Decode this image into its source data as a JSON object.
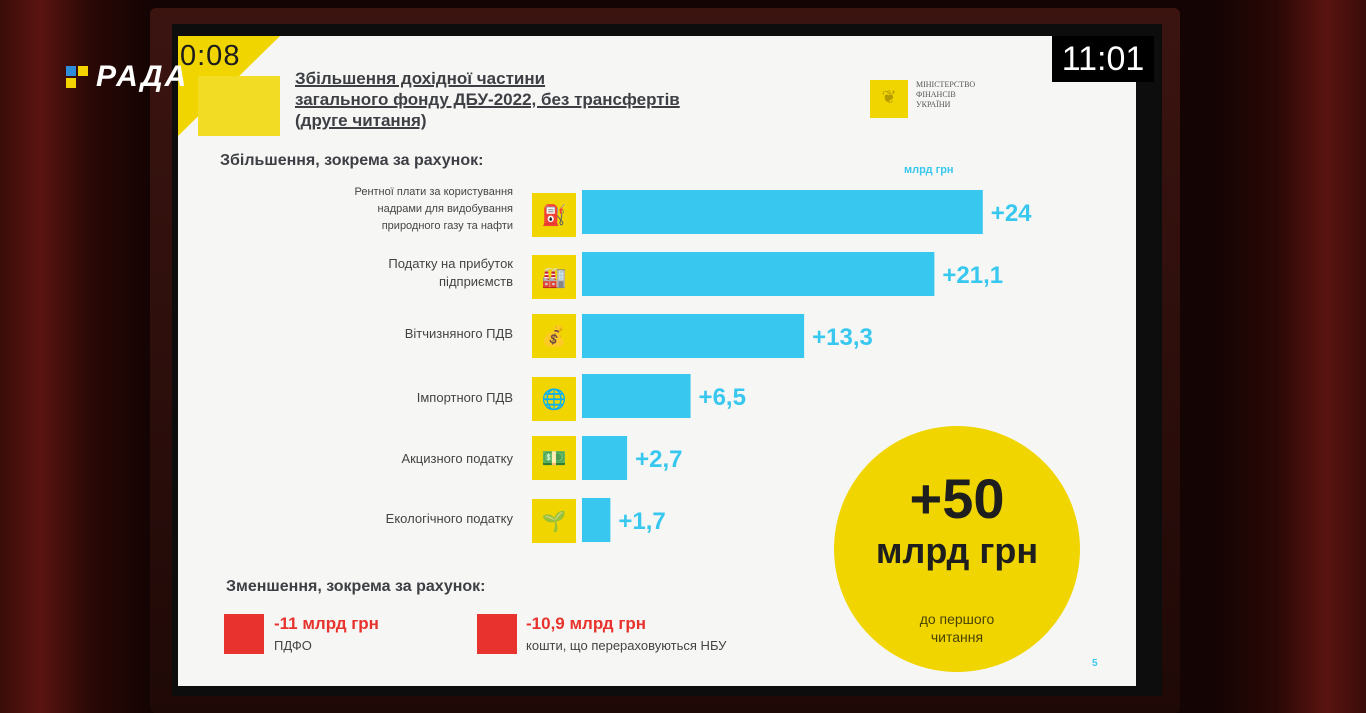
{
  "overlay": {
    "channel_logo": "РАДА",
    "timer": "0:08",
    "clock": "11:01"
  },
  "slide": {
    "title_lines": [
      "Збільшення дохідної частини",
      "загального фонду ДБУ-2022, без трансфертів",
      "(друге читання)"
    ],
    "ministry_lines": [
      "Міністерство",
      "фінансів",
      "України"
    ],
    "increase_heading": "Збільшення, зокрема за рахунок:",
    "units": "млрд грн",
    "decrease_heading": "Зменшення, зокрема за рахунок:",
    "decreases": [
      {
        "value": "-11 млрд грн",
        "desc": "ПДФО"
      },
      {
        "value": "-10,9 млрд грн",
        "desc": "кошти, що перераховуються НБУ"
      }
    ],
    "total": {
      "value": "+50",
      "unit": "млрд грн",
      "note_lines": [
        "до першого",
        "читання"
      ]
    },
    "page_number": "5"
  },
  "chart_data": {
    "type": "bar",
    "orientation": "horizontal",
    "categories": [
      "Рентної плати за користування надрами для видобування природного газу та нафти",
      "Податку на прибуток підприємств",
      "Вітчизняного ПДВ",
      "Імпортного ПДВ",
      "Акцизного податку",
      "Екологічного податку"
    ],
    "category_lines": [
      [
        "Рентної плати за користування",
        "надрами для видобування",
        "природного газу та нафти"
      ],
      [
        "Податку на прибуток",
        "підприємств"
      ],
      [
        "Вітчизняного ПДВ"
      ],
      [
        "Імпортного ПДВ"
      ],
      [
        "Акцизного податку"
      ],
      [
        "Екологічного податку"
      ]
    ],
    "values": [
      24,
      21.1,
      13.3,
      6.5,
      2.7,
      1.7
    ],
    "value_labels": [
      "+24",
      "+21,1",
      "+13,3",
      "+6,5",
      "+2,7",
      "+1,7"
    ],
    "icons": [
      "gas-canister-icon",
      "factory-icon",
      "money-bag-icon",
      "globe-icon",
      "money-stack-icon",
      "plant-icon"
    ],
    "units": "млрд грн",
    "bar_color": "#38c7ef",
    "label_color": "#38c7ef"
  },
  "colors": {
    "accent_yellow": "#f0d500",
    "bar_blue": "#38c7ef",
    "decrease_red": "#e8322d"
  }
}
